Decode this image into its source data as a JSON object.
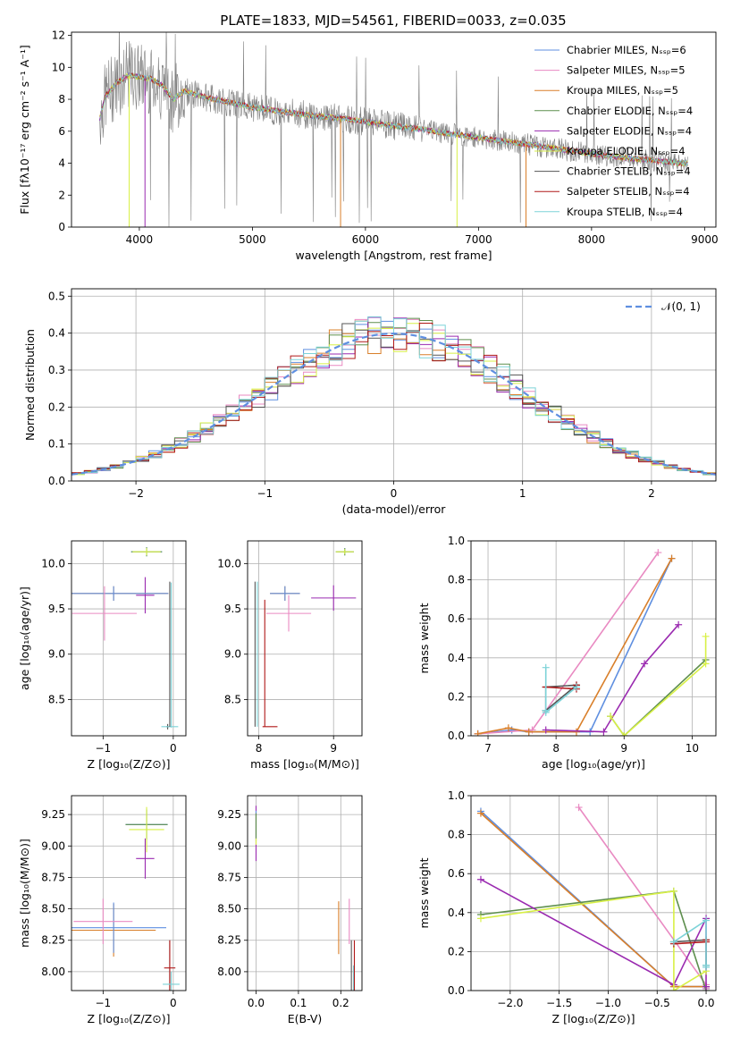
{
  "figure": {
    "title": "PLATE=1833, MJD=54561, FIBERID=0033, z=0.035"
  },
  "series_styles": [
    {
      "name": "Chabrier MILES",
      "nssp": "6",
      "color": "#5f8fe0"
    },
    {
      "name": "Salpeter MILES",
      "nssp": "5",
      "color": "#e98ac2"
    },
    {
      "name": "Kroupa MILES",
      "nssp": "5",
      "color": "#d97f2a"
    },
    {
      "name": "Chabrier ELODIE",
      "nssp": "4",
      "color": "#5e8f4e"
    },
    {
      "name": "Salpeter ELODIE",
      "nssp": "4",
      "color": "#9a2ab0"
    },
    {
      "name": "Kroupa ELODIE",
      "nssp": "4",
      "color": "#d8f046"
    },
    {
      "name": "Chabrier STELIB",
      "nssp": "4",
      "color": "#555555"
    },
    {
      "name": "Salpeter STELIB",
      "nssp": "4",
      "color": "#b01818"
    },
    {
      "name": "Kroupa STELIB",
      "nssp": "4",
      "color": "#7dd3d8"
    }
  ],
  "chart_data": [
    {
      "id": "spectrum",
      "type": "line",
      "xlabel": "wavelength [Angstrom, rest frame]",
      "ylabel": "Flux [fλ10⁻¹⁷ erg cm⁻² s⁻¹ A⁻¹]",
      "xlim": [
        3400,
        9100
      ],
      "ylim": [
        0,
        12.2
      ],
      "xticks": [
        "4000",
        "5000",
        "6000",
        "7000",
        "8000",
        "9000"
      ],
      "yticks": [
        "0",
        "2",
        "4",
        "6",
        "8",
        "10",
        "12"
      ],
      "legend_position": "top-right",
      "legend": [
        "Chabrier MILES, Nₛₛₚ=6",
        "Salpeter MILES, Nₛₛₚ=5",
        "Kroupa MILES, Nₛₛₚ=5",
        "Chabrier ELODIE, Nₛₛₚ=4",
        "Salpeter ELODIE, Nₛₛₚ=4",
        "Kroupa ELODIE, Nₛₛₚ=4",
        "Chabrier STELIB, Nₛₛₚ=4",
        "Salpeter STELIB, Nₛₛₚ=4",
        "Kroupa STELIB, Nₛₛₚ=4"
      ],
      "continuum_model": {
        "x": [
          3650,
          3700,
          3800,
          3900,
          4000,
          4100,
          4200,
          4300,
          4400,
          4600,
          4800,
          5000,
          5200,
          5500,
          5800,
          6100,
          6400,
          6700,
          7000,
          7300,
          7600,
          7900,
          8200,
          8500,
          8800
        ],
        "y": [
          6.8,
          8.2,
          9.0,
          9.5,
          9.4,
          9.3,
          8.9,
          8.0,
          8.5,
          8.1,
          7.8,
          7.5,
          7.3,
          7.0,
          6.8,
          6.5,
          6.2,
          5.9,
          5.6,
          5.3,
          5.0,
          4.7,
          4.4,
          4.2,
          4.0
        ]
      }
    },
    {
      "id": "residuals",
      "type": "histogram",
      "xlabel": "(data-model)/error",
      "ylabel": "Normed distribution",
      "xlim": [
        -2.5,
        2.5
      ],
      "ylim": [
        0,
        0.52
      ],
      "xticks": [
        "−2",
        "−1",
        "0",
        "1",
        "2"
      ],
      "yticks": [
        "0.0",
        "0.1",
        "0.2",
        "0.3",
        "0.4",
        "0.5"
      ],
      "legend": [
        "𝒩(0, 1)"
      ],
      "legend_position": "top-right",
      "bin_width": 0.1
    },
    {
      "id": "age-vs-Z",
      "type": "errorbar",
      "xlabel": "Z [log₁₀(Z/Z⊙)]",
      "ylabel": "age  [log₁₀(age/yr)]",
      "xlim": [
        -1.45,
        0.18
      ],
      "ylim": [
        8.1,
        10.25
      ],
      "xticks": [
        "−1",
        "0"
      ],
      "yticks": [
        "8.5",
        "9.0",
        "9.5",
        "10.0"
      ],
      "points": [
        {
          "s": 0,
          "x": -0.38,
          "xe": 0.22,
          "y": 10.13,
          "ye": 0.05
        },
        {
          "s": 3,
          "x": -0.38,
          "xe": 0.22,
          "y": 10.13,
          "ye": 0.05
        },
        {
          "s": 5,
          "x": -0.38,
          "xe": 0.2,
          "y": 10.13,
          "ye": 0.04
        },
        {
          "s": 4,
          "x": -0.4,
          "xe": 0.13,
          "y": 9.65,
          "ye": 0.2
        },
        {
          "s": 2,
          "x": -0.85,
          "xe": 0.78,
          "y": 9.67,
          "ye": 0.08
        },
        {
          "s": 0,
          "x": -0.85,
          "xe": 0.78,
          "y": 9.67,
          "ye": 0.08
        },
        {
          "s": 1,
          "x": -0.98,
          "xe": 0.46,
          "y": 9.45,
          "ye": 0.3
        },
        {
          "s": 6,
          "x": -0.08,
          "xe": 0.02,
          "y": 8.2,
          "ye": 0.03
        },
        {
          "s": 8,
          "x": -0.05,
          "xe": 0.12,
          "y": 8.2,
          "ye": 0.0
        },
        {
          "s": 6,
          "x": -0.05,
          "xe": 0.0,
          "y": 9.0,
          "ye": 0.8
        },
        {
          "s": 8,
          "x": -0.03,
          "xe": 0.0,
          "y": 8.99,
          "ye": 0.8
        }
      ]
    },
    {
      "id": "age-vs-mass",
      "type": "errorbar",
      "xlabel": "mass [log₁₀(M/M⊙)]",
      "ylabel": "",
      "xlim": [
        7.85,
        9.38
      ],
      "ylim": [
        8.1,
        10.25
      ],
      "xticks": [
        "8",
        "9"
      ],
      "yticks": [
        "8.5",
        "9.0",
        "9.5",
        "10.0"
      ],
      "points": [
        {
          "s": 0,
          "x": 9.15,
          "xe": 0.12,
          "y": 10.13,
          "ye": 0.04
        },
        {
          "s": 3,
          "x": 9.15,
          "xe": 0.12,
          "y": 10.13,
          "ye": 0.04
        },
        {
          "s": 5,
          "x": 9.15,
          "xe": 0.12,
          "y": 10.13,
          "ye": 0.03
        },
        {
          "s": 4,
          "x": 9.0,
          "xe": 0.3,
          "y": 9.62,
          "ye": 0.14
        },
        {
          "s": 2,
          "x": 8.35,
          "xe": 0.2,
          "y": 9.67,
          "ye": 0.08
        },
        {
          "s": 0,
          "x": 8.35,
          "xe": 0.2,
          "y": 9.67,
          "ye": 0.08
        },
        {
          "s": 1,
          "x": 8.4,
          "xe": 0.3,
          "y": 9.45,
          "ye": 0.2
        },
        {
          "s": 6,
          "x": 7.95,
          "xe": 0.0,
          "y": 9.0,
          "ye": 0.8
        },
        {
          "s": 8,
          "x": 7.98,
          "xe": 0.0,
          "y": 9.0,
          "ye": 0.8
        },
        {
          "s": 7,
          "x": 8.15,
          "xe": 0.1,
          "y": 8.2,
          "ye": 0.0
        },
        {
          "s": 7,
          "x": 8.08,
          "xe": 0.0,
          "y": 8.9,
          "ye": 0.7
        }
      ]
    },
    {
      "id": "mass-weight-vs-age",
      "type": "line",
      "xlabel": "age  [log₁₀(age/yr)]",
      "ylabel": "mass weight",
      "xlim": [
        6.75,
        10.35
      ],
      "ylim": [
        0,
        1.0
      ],
      "xticks": [
        "7",
        "8",
        "9",
        "10"
      ],
      "yticks": [
        "0.0",
        "0.2",
        "0.4",
        "0.6",
        "0.8",
        "1.0"
      ],
      "series": [
        {
          "s": 0,
          "x": [
            6.85,
            7.35,
            7.6,
            8.5,
            9.7
          ],
          "y": [
            0.01,
            0.03,
            0.02,
            0.02,
            0.91
          ]
        },
        {
          "s": 1,
          "x": [
            6.85,
            7.65,
            9.5
          ],
          "y": [
            0.01,
            0.03,
            0.94
          ]
        },
        {
          "s": 2,
          "x": [
            6.85,
            7.3,
            7.6,
            8.3,
            9.7
          ],
          "y": [
            0.01,
            0.04,
            0.02,
            0.02,
            0.91
          ]
        },
        {
          "s": 3,
          "x": [
            8.8,
            9.0,
            10.2
          ],
          "y": [
            0.1,
            0.0,
            0.39
          ]
        },
        {
          "s": 4,
          "x": [
            7.85,
            8.7,
            9.3,
            9.8
          ],
          "y": [
            0.03,
            0.02,
            0.37,
            0.57
          ]
        },
        {
          "s": 5,
          "x": [
            8.8,
            9.0,
            10.2,
            10.2
          ],
          "y": [
            0.1,
            0.0,
            0.37,
            0.51
          ]
        },
        {
          "s": 6,
          "x": [
            7.85,
            8.3,
            7.85,
            7.85
          ],
          "y": [
            0.13,
            0.26,
            0.25,
            0.13
          ]
        },
        {
          "s": 7,
          "x": [
            7.85,
            8.3,
            8.3
          ],
          "y": [
            0.25,
            0.24,
            0.26
          ]
        },
        {
          "s": 8,
          "x": [
            7.85,
            7.85,
            7.85,
            8.3
          ],
          "y": [
            0.35,
            0.13,
            0.12,
            0.25
          ]
        }
      ]
    },
    {
      "id": "mass-vs-Z",
      "type": "errorbar",
      "xlabel": "Z [log₁₀(Z/Z⊙)]",
      "ylabel": "mass [log₁₀(M/M⊙)]",
      "xlim": [
        -1.45,
        0.18
      ],
      "ylim": [
        7.85,
        9.4
      ],
      "xticks": [
        "−1",
        "0"
      ],
      "yticks": [
        "8.00",
        "8.25",
        "8.50",
        "8.75",
        "9.00",
        "9.25"
      ],
      "points": [
        {
          "s": 0,
          "x": -0.38,
          "xe": 0.3,
          "y": 9.17,
          "ye": 0.12
        },
        {
          "s": 3,
          "x": -0.38,
          "xe": 0.3,
          "y": 9.17,
          "ye": 0.12
        },
        {
          "s": 5,
          "x": -0.38,
          "xe": 0.25,
          "y": 9.13,
          "ye": 0.18
        },
        {
          "s": 4,
          "x": -0.4,
          "xe": 0.13,
          "y": 8.9,
          "ye": 0.16
        },
        {
          "s": 2,
          "x": -0.85,
          "xe": 0.6,
          "y": 8.33,
          "ye": 0.21
        },
        {
          "s": 0,
          "x": -0.85,
          "xe": 0.75,
          "y": 8.35,
          "ye": 0.2
        },
        {
          "s": 1,
          "x": -1.0,
          "xe": 0.42,
          "y": 8.4,
          "ye": 0.18
        },
        {
          "s": 6,
          "x": -0.05,
          "xe": 0.0,
          "y": 8.05,
          "ye": 0.2
        },
        {
          "s": 7,
          "x": -0.05,
          "xe": 0.08,
          "y": 8.03,
          "ye": 0.22
        },
        {
          "s": 8,
          "x": -0.03,
          "xe": 0.12,
          "y": 7.9,
          "ye": 0.1
        }
      ]
    },
    {
      "id": "mass-vs-ebv",
      "type": "errorbar",
      "xlabel": "E(B-V)",
      "ylabel": "",
      "xlim": [
        -0.02,
        0.25
      ],
      "ylim": [
        7.85,
        9.4
      ],
      "xticks": [
        "0.0",
        "0.1",
        "0.2"
      ],
      "yticks": [
        "8.00",
        "8.25",
        "8.50",
        "8.75",
        "9.00",
        "9.25"
      ],
      "points": [
        {
          "s": 4,
          "x": 0.0,
          "xe": 0.0,
          "y": 9.1,
          "ye": 0.22
        },
        {
          "s": 0,
          "x": 0.0,
          "xe": 0.0,
          "y": 9.16,
          "ye": 0.12
        },
        {
          "s": 5,
          "x": 0.0,
          "xe": 0.0,
          "y": 9.13,
          "ye": 0.12
        },
        {
          "s": 3,
          "x": 0.0,
          "xe": 0.0,
          "y": 9.16,
          "ye": 0.1
        },
        {
          "s": 2,
          "x": 0.195,
          "xe": 0.0,
          "y": 8.35,
          "ye": 0.21
        },
        {
          "s": 1,
          "x": 0.22,
          "xe": 0.0,
          "y": 8.4,
          "ye": 0.18
        },
        {
          "s": 6,
          "x": 0.225,
          "xe": 0.0,
          "y": 8.05,
          "ye": 0.2
        },
        {
          "s": 8,
          "x": 0.23,
          "xe": 0.0,
          "y": 7.95,
          "ye": 0.1
        },
        {
          "s": 7,
          "x": 0.232,
          "xe": 0.0,
          "y": 8.03,
          "ye": 0.22
        }
      ]
    },
    {
      "id": "mass-weight-vs-Z",
      "type": "line",
      "xlabel": "Z [log₁₀(Z/Z⊙)]",
      "ylabel": "mass weight",
      "xlim": [
        -2.4,
        0.1
      ],
      "ylim": [
        0,
        1.0
      ],
      "xticks": [
        "−2.0",
        "−1.5",
        "−1.0",
        "−0.5",
        "0.0"
      ],
      "yticks": [
        "0.0",
        "0.2",
        "0.4",
        "0.6",
        "0.8",
        "1.0"
      ],
      "series": [
        {
          "s": 0,
          "x": [
            -2.3,
            -0.33,
            0.0,
            0.0
          ],
          "y": [
            0.92,
            0.02,
            0.02,
            0.01
          ]
        },
        {
          "s": 1,
          "x": [
            -1.3,
            0.0,
            0.0
          ],
          "y": [
            0.94,
            0.03,
            0.01
          ]
        },
        {
          "s": 2,
          "x": [
            -2.3,
            -0.33,
            0.0
          ],
          "y": [
            0.91,
            0.02,
            0.02
          ]
        },
        {
          "s": 3,
          "x": [
            -2.3,
            -0.33,
            0.0
          ],
          "y": [
            0.39,
            0.51,
            0.0
          ]
        },
        {
          "s": 4,
          "x": [
            -2.3,
            -0.33,
            0.0,
            0.0
          ],
          "y": [
            0.57,
            0.03,
            0.37,
            0.02
          ]
        },
        {
          "s": 5,
          "x": [
            -2.3,
            -0.33,
            -0.33,
            0.0
          ],
          "y": [
            0.37,
            0.51,
            0.0,
            0.1
          ]
        },
        {
          "s": 6,
          "x": [
            -0.33,
            0.0,
            0.0
          ],
          "y": [
            0.25,
            0.26,
            0.13
          ]
        },
        {
          "s": 7,
          "x": [
            -0.33,
            0.0,
            0.0
          ],
          "y": [
            0.24,
            0.25,
            0.26
          ]
        },
        {
          "s": 8,
          "x": [
            -0.33,
            0.0,
            0.0,
            0.0
          ],
          "y": [
            0.25,
            0.36,
            0.13,
            0.12
          ]
        }
      ]
    }
  ]
}
